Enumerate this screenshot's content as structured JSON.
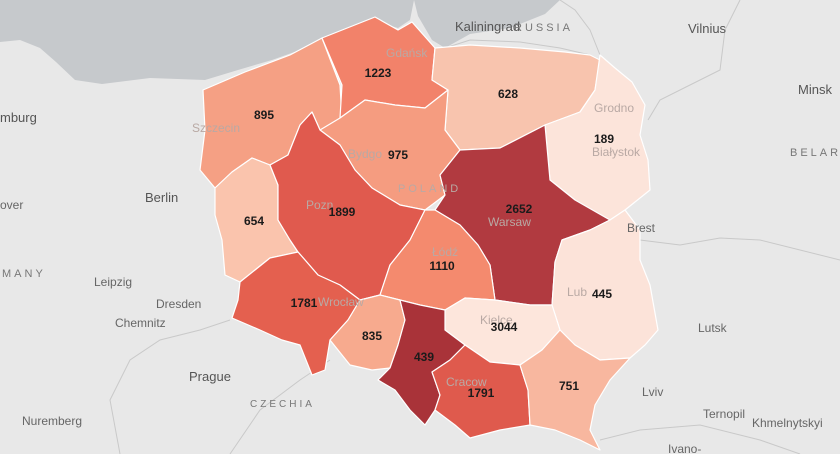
{
  "colors": {
    "background": "#e8e8e8",
    "sea": "#c6c9cc",
    "scale_lowest": "#fbe4db",
    "scale_highest": "#b03a3f"
  },
  "labels": {
    "kaliningrad": "Kaliningrad",
    "russia": "RUSSIA",
    "vilnius": "Vilnius",
    "minsk": "Minsk",
    "belarus": "BELAR",
    "grodno": "Grodno",
    "bialystok": "Białystok",
    "brest": "Brest",
    "gdansk": "Gdańsk",
    "szczecin": "Szczecin",
    "bydgoszcz": "Bydgo",
    "poland": "POLAND",
    "poznan": "Pozn",
    "warsaw": "Warsaw",
    "lodz": "Łódź",
    "lublin": "Lub",
    "wroclaw": "Wrocław",
    "kielce": "Kielce",
    "krakow": "Cracow",
    "berlin": "Berlin",
    "hamburg": "mburg",
    "hanover": "over",
    "germany": "MANY",
    "leipzig": "Leipzig",
    "dresden": "Dresden",
    "chemnitz": "Chemnitz",
    "prague": "Prague",
    "czechia": "CZECHIA",
    "nuremberg": "Nuremberg",
    "lutsk": "Lutsk",
    "lviv": "Lviv",
    "ternopil": "Ternopil",
    "khmelnytskyi": "Khmelnytskyi",
    "ivano": "Ivano-"
  },
  "regions": [
    {
      "id": "pomorskie",
      "value": "1223",
      "color": "#f2826a"
    },
    {
      "id": "warminsko-mazurskie",
      "value": "628",
      "color": "#f8c4ae"
    },
    {
      "id": "podlaskie",
      "value": "189",
      "color": "#fce4da"
    },
    {
      "id": "zachodniopomorskie",
      "value": "895",
      "color": "#f5a084"
    },
    {
      "id": "kujawsko-pomorskie",
      "value": "975",
      "color": "#f59c80"
    },
    {
      "id": "mazowieckie",
      "value": "2652",
      "color": "#b13a40"
    },
    {
      "id": "lubuskie",
      "value": "654",
      "color": "#fac4ad"
    },
    {
      "id": "wielkopolskie",
      "value": "1899",
      "color": "#e05a4e"
    },
    {
      "id": "lodzkie",
      "value": "1110",
      "color": "#f48a6e"
    },
    {
      "id": "lubelskie",
      "value": "445",
      "color": "#fce3d9"
    },
    {
      "id": "dolnoslaskie",
      "value": "1781",
      "color": "#e4604f"
    },
    {
      "id": "opolskie",
      "value": "835",
      "color": "#f7aa8e"
    },
    {
      "id": "slaskie",
      "value": "3044",
      "color": "#a93339"
    },
    {
      "id": "swietokrzyskie",
      "value": "439",
      "color": "#fde6dc"
    },
    {
      "id": "malopolskie",
      "value": "1791",
      "color": "#df5a4d"
    },
    {
      "id": "podkarpackie",
      "value": "751",
      "color": "#f8b79f"
    }
  ]
}
